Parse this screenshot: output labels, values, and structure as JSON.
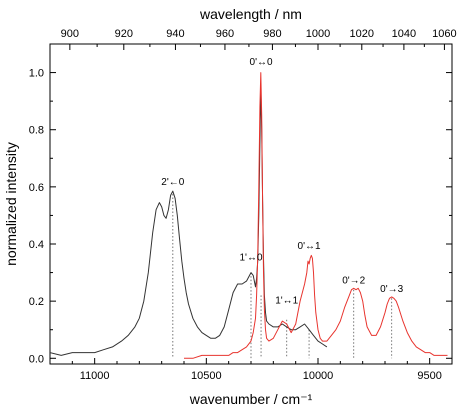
{
  "chart_data": {
    "type": "line",
    "xlabel": "wavenumber / cm⁻¹",
    "ylabel": "normalized intensity",
    "x2label": "wavelength / nm",
    "xlim": [
      11200,
      9400
    ],
    "ylim": [
      -0.02,
      1.1
    ],
    "xticks": [
      11000,
      10500,
      10000,
      9500
    ],
    "x_minor_step": 100,
    "yticks": [
      0.0,
      0.2,
      0.4,
      0.6,
      0.8,
      1.0
    ],
    "y_minor_step": 0.1,
    "x2ticks": [
      900,
      920,
      940,
      960,
      980,
      1000,
      1020,
      1040,
      1060
    ],
    "x2_minor_step": 10,
    "series": [
      {
        "color": "#333333",
        "x": [
          11200,
          11150,
          11100,
          11050,
          11000,
          10960,
          10920,
          10880,
          10850,
          10820,
          10800,
          10780,
          10760,
          10740,
          10725,
          10710,
          10700,
          10690,
          10680,
          10670,
          10660,
          10650,
          10640,
          10630,
          10620,
          10610,
          10600,
          10590,
          10580,
          10560,
          10540,
          10520,
          10500,
          10480,
          10460,
          10440,
          10420,
          10400,
          10380,
          10360,
          10340,
          10320,
          10300,
          10290,
          10280,
          10275,
          10270,
          10265,
          10260,
          10256,
          10252,
          10248,
          10244,
          10240,
          10235,
          10230,
          10220,
          10200,
          10180,
          10160,
          10140,
          10120,
          10100,
          10080,
          10060,
          10040,
          10020,
          10000,
          9980,
          9960
        ],
        "y": [
          0.02,
          0.01,
          0.02,
          0.02,
          0.02,
          0.03,
          0.04,
          0.06,
          0.08,
          0.11,
          0.14,
          0.2,
          0.3,
          0.44,
          0.52,
          0.545,
          0.53,
          0.5,
          0.49,
          0.52,
          0.57,
          0.585,
          0.56,
          0.5,
          0.42,
          0.34,
          0.28,
          0.23,
          0.19,
          0.14,
          0.11,
          0.09,
          0.08,
          0.07,
          0.07,
          0.08,
          0.11,
          0.17,
          0.23,
          0.26,
          0.26,
          0.27,
          0.3,
          0.29,
          0.25,
          0.28,
          0.34,
          0.5,
          0.75,
          0.95,
          0.8,
          0.55,
          0.35,
          0.22,
          0.16,
          0.13,
          0.12,
          0.11,
          0.11,
          0.12,
          0.11,
          0.1,
          0.1,
          0.11,
          0.12,
          0.1,
          0.08,
          0.06,
          0.05,
          0.04
        ]
      },
      {
        "color": "#e8342e",
        "x": [
          10600,
          10560,
          10520,
          10480,
          10440,
          10400,
          10380,
          10360,
          10340,
          10320,
          10300,
          10290,
          10280,
          10275,
          10270,
          10265,
          10260,
          10256,
          10252,
          10248,
          10244,
          10240,
          10235,
          10230,
          10220,
          10200,
          10180,
          10160,
          10140,
          10120,
          10100,
          10080,
          10060,
          10050,
          10045,
          10040,
          10035,
          10030,
          10025,
          10020,
          10015,
          10010,
          10000,
          9990,
          9980,
          9960,
          9940,
          9920,
          9900,
          9880,
          9860,
          9850,
          9840,
          9830,
          9820,
          9810,
          9800,
          9790,
          9780,
          9760,
          9740,
          9720,
          9700,
          9690,
          9680,
          9670,
          9660,
          9650,
          9640,
          9620,
          9600,
          9580,
          9560,
          9540,
          9520,
          9500,
          9480,
          9460,
          9440,
          9420
        ],
        "y": [
          0.0,
          0.0,
          0.01,
          0.01,
          0.01,
          0.01,
          0.02,
          0.02,
          0.03,
          0.04,
          0.06,
          0.09,
          0.14,
          0.22,
          0.35,
          0.6,
          0.88,
          1.0,
          0.85,
          0.55,
          0.3,
          0.17,
          0.1,
          0.07,
          0.06,
          0.07,
          0.1,
          0.13,
          0.12,
          0.09,
          0.12,
          0.2,
          0.26,
          0.3,
          0.34,
          0.33,
          0.35,
          0.36,
          0.35,
          0.3,
          0.22,
          0.16,
          0.1,
          0.07,
          0.06,
          0.06,
          0.08,
          0.1,
          0.13,
          0.18,
          0.22,
          0.24,
          0.245,
          0.24,
          0.245,
          0.23,
          0.2,
          0.15,
          0.11,
          0.08,
          0.08,
          0.11,
          0.16,
          0.19,
          0.21,
          0.215,
          0.21,
          0.2,
          0.18,
          0.13,
          0.09,
          0.06,
          0.04,
          0.03,
          0.02,
          0.02,
          0.01,
          0.01,
          0.01,
          0.01
        ]
      }
    ],
    "annotations": [
      {
        "text": "2'←0",
        "x": 10650,
        "y": 0.6,
        "drop_from": 0.575
      },
      {
        "text": "1'↔0",
        "x": 10300,
        "y": 0.335,
        "drop_from": 0.3
      },
      {
        "text": "0'↔0",
        "x": 10255,
        "y": 1.02,
        "drop_from": 0.22
      },
      {
        "text": "1'↔1",
        "x": 10140,
        "y": 0.185,
        "drop_from": 0.135
      },
      {
        "text": "0'↔1",
        "x": 10040,
        "y": 0.375,
        "drop_from": 0.1
      },
      {
        "text": "0'→2",
        "x": 9840,
        "y": 0.255,
        "drop_from": 0.24
      },
      {
        "text": "0'→3",
        "x": 9670,
        "y": 0.225,
        "drop_from": 0.21
      }
    ]
  }
}
